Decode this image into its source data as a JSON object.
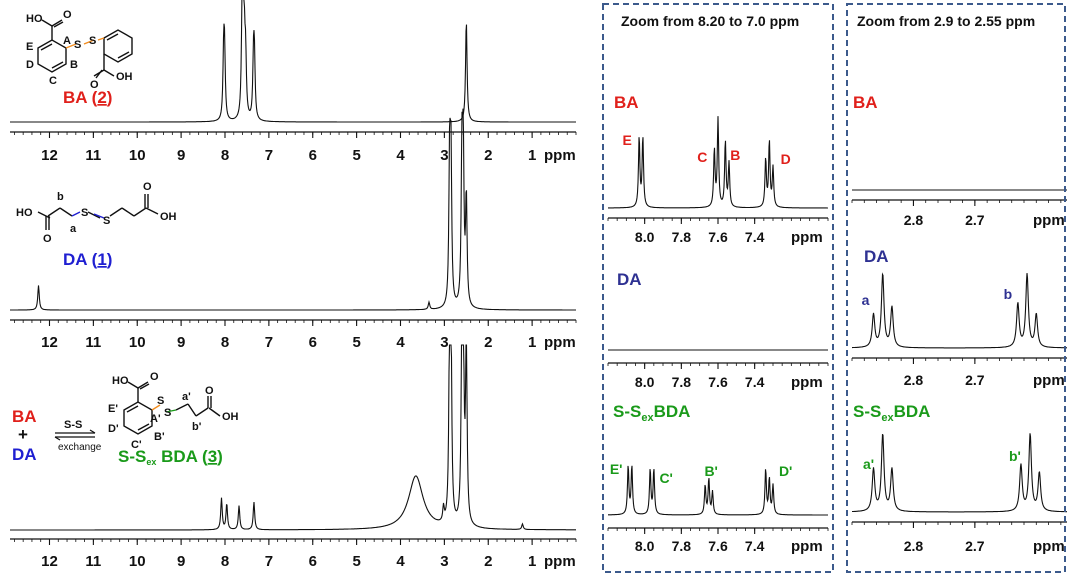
{
  "colors": {
    "red": "#e0201b",
    "blue": "#1f1fd1",
    "navy": "#2e3192",
    "green": "#1a9a1a",
    "orange": "#f28c1e",
    "frame": "#3c5a8c"
  },
  "molecules": {
    "ba": {
      "name": "BA",
      "number": "2",
      "carboxyl_top": "HO",
      "carboxyl_bottom": "OH",
      "atoms": [
        "O",
        "O",
        "S",
        "S"
      ],
      "labels": [
        "A",
        "B",
        "C",
        "D",
        "E"
      ]
    },
    "da": {
      "name": "DA",
      "number": "1",
      "left_group": "HO",
      "right_group": "OH",
      "atoms": [
        "O",
        "O",
        "S",
        "S"
      ],
      "labels": [
        "a",
        "b"
      ]
    },
    "bda": {
      "name": "S-S",
      "name_sub": "ex",
      "name_suffix": " BDA",
      "number": "3",
      "group_top": "HO",
      "group_right": "OH",
      "atoms": [
        "O",
        "O",
        "S",
        "S"
      ],
      "labels": [
        "A'",
        "B'",
        "C'",
        "D'",
        "E'",
        "a'",
        "b'"
      ]
    },
    "reaction": {
      "reactant1": "BA",
      "plus": "+",
      "reactant2": "DA",
      "above_arrow": "S-S",
      "below_arrow": "exchange"
    }
  },
  "panels": {
    "zoom1_title": "Zoom from 8.20 to 7.0 ppm",
    "zoom2_title": "Zoom from 2.9 to 2.55 ppm",
    "zoom_labels": {
      "ba": "BA",
      "da": "DA",
      "bda_main": "S-S",
      "bda_sub": "ex",
      "bda_suffix": "BDA"
    },
    "unit": "ppm"
  },
  "chart_data": [
    {
      "type": "line",
      "panel": "full-spectrum-BA",
      "x_axis": {
        "range": [
          12.9,
          0
        ],
        "reversed": true,
        "ticks": [
          12,
          11,
          10,
          9,
          8,
          7,
          6,
          5,
          4,
          3,
          2,
          1
        ],
        "unit": "ppm"
      },
      "peaks": [
        {
          "ppm": 8.03,
          "height": 0.6
        },
        {
          "ppm": 8.01,
          "height": 0.6
        },
        {
          "ppm": 7.61,
          "height": 0.85
        },
        {
          "ppm": 7.59,
          "height": 0.75
        },
        {
          "ppm": 7.56,
          "height": 0.65
        },
        {
          "ppm": 7.53,
          "height": 0.55
        },
        {
          "ppm": 7.35,
          "height": 0.55
        },
        {
          "ppm": 7.33,
          "height": 0.55
        },
        {
          "ppm": 2.5,
          "height": 1.0
        }
      ]
    },
    {
      "type": "line",
      "panel": "full-spectrum-DA",
      "x_axis": {
        "range": [
          12.9,
          0
        ],
        "reversed": true,
        "ticks": [
          12,
          11,
          10,
          9,
          8,
          7,
          6,
          5,
          4,
          3,
          2,
          1
        ],
        "unit": "ppm"
      },
      "peaks": [
        {
          "ppm": 12.25,
          "height": 0.17
        },
        {
          "ppm": 3.35,
          "height": 0.05
        },
        {
          "ppm": 2.88,
          "height": 1.0
        },
        {
          "ppm": 2.85,
          "height": 1.0
        },
        {
          "ppm": 2.6,
          "height": 1.0
        },
        {
          "ppm": 2.57,
          "height": 1.0
        },
        {
          "ppm": 2.5,
          "height": 0.75
        }
      ]
    },
    {
      "type": "line",
      "panel": "full-spectrum-SSexBDA",
      "x_axis": {
        "range": [
          12.9,
          0
        ],
        "reversed": true,
        "ticks": [
          12,
          11,
          10,
          9,
          8,
          7,
          6,
          5,
          4,
          3,
          2,
          1
        ],
        "unit": "ppm"
      },
      "peaks": [
        {
          "ppm": 8.08,
          "height": 0.17
        },
        {
          "ppm": 7.96,
          "height": 0.14
        },
        {
          "ppm": 7.68,
          "height": 0.13
        },
        {
          "ppm": 7.34,
          "height": 0.15
        },
        {
          "ppm": 3.65,
          "height": 0.29,
          "broad": true
        },
        {
          "ppm": 3.02,
          "height": 0.08
        },
        {
          "ppm": 2.88,
          "height": 1.0
        },
        {
          "ppm": 2.85,
          "height": 1.0
        },
        {
          "ppm": 2.6,
          "height": 1.0
        },
        {
          "ppm": 2.57,
          "height": 1.0
        },
        {
          "ppm": 2.5,
          "height": 1.0
        },
        {
          "ppm": 1.22,
          "height": 0.03
        }
      ]
    },
    {
      "type": "line",
      "panel": "zoom-aromatic",
      "x_axis": {
        "range": [
          8.2,
          7.0
        ],
        "reversed": true,
        "ticks": [
          8.0,
          7.8,
          7.6,
          7.4
        ],
        "unit": "ppm"
      },
      "series": [
        {
          "name": "BA",
          "peaks": [
            {
              "ppm": 8.03,
              "height": 0.8,
              "label": "E"
            },
            {
              "ppm": 8.01,
              "height": 0.8
            },
            {
              "ppm": 7.62,
              "height": 0.65,
              "label": "C"
            },
            {
              "ppm": 7.6,
              "height": 1.0
            },
            {
              "ppm": 7.56,
              "height": 0.75,
              "label": "B"
            },
            {
              "ppm": 7.54,
              "height": 0.5
            },
            {
              "ppm": 7.34,
              "height": 0.55,
              "label": "D"
            },
            {
              "ppm": 7.32,
              "height": 0.75
            },
            {
              "ppm": 7.3,
              "height": 0.45
            }
          ]
        },
        {
          "name": "DA",
          "peaks": []
        },
        {
          "name": "S-SexBDA",
          "peaks": [
            {
              "ppm": 8.09,
              "height": 0.75,
              "label": "E'"
            },
            {
              "ppm": 8.07,
              "height": 0.75
            },
            {
              "ppm": 7.97,
              "height": 0.7,
              "label": "C'"
            },
            {
              "ppm": 7.95,
              "height": 0.7
            },
            {
              "ppm": 7.67,
              "height": 0.45,
              "label": "B'"
            },
            {
              "ppm": 7.65,
              "height": 0.55
            },
            {
              "ppm": 7.63,
              "height": 0.35
            },
            {
              "ppm": 7.34,
              "height": 0.7,
              "label": "D'"
            },
            {
              "ppm": 7.32,
              "height": 0.55
            },
            {
              "ppm": 7.3,
              "height": 0.45
            }
          ]
        }
      ]
    },
    {
      "type": "line",
      "panel": "zoom-aliphatic",
      "x_axis": {
        "range": [
          2.9,
          2.55
        ],
        "reversed": true,
        "ticks": [
          2.8,
          2.7
        ],
        "unit": "ppm"
      },
      "series": [
        {
          "name": "BA",
          "peaks": []
        },
        {
          "name": "DA",
          "peaks": [
            {
              "ppm": 2.865,
              "height": 0.45,
              "label": "a"
            },
            {
              "ppm": 2.85,
              "height": 1.0
            },
            {
              "ppm": 2.835,
              "height": 0.55
            },
            {
              "ppm": 2.63,
              "height": 0.6,
              "label": "b"
            },
            {
              "ppm": 2.615,
              "height": 1.0
            },
            {
              "ppm": 2.6,
              "height": 0.45
            }
          ]
        },
        {
          "name": "S-SexBDA",
          "peaks": [
            {
              "ppm": 2.865,
              "height": 0.55,
              "label": "a'"
            },
            {
              "ppm": 2.85,
              "height": 1.0
            },
            {
              "ppm": 2.835,
              "height": 0.55
            },
            {
              "ppm": 2.625,
              "height": 0.6,
              "label": "b'"
            },
            {
              "ppm": 2.61,
              "height": 1.0
            },
            {
              "ppm": 2.595,
              "height": 0.5
            }
          ]
        }
      ]
    }
  ]
}
